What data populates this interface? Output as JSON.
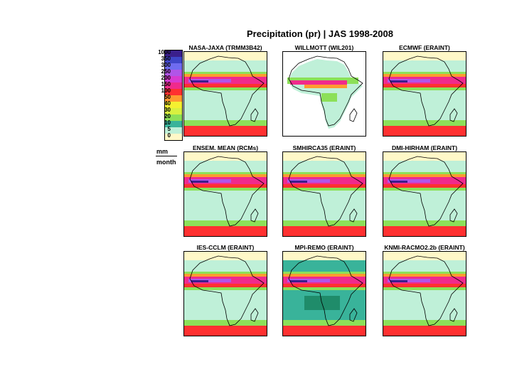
{
  "title": "Precipitation (pr) | JAS  1998-2008",
  "colorbar": {
    "labels": [
      "1000",
      "350",
      "300",
      "250",
      "200",
      "150",
      "100",
      "50",
      "40",
      "30",
      "20",
      "10",
      "5",
      "0"
    ],
    "colors": [
      "#3a1f8c",
      "#3f46c8",
      "#6f6cf0",
      "#b155e8",
      "#d83ad0",
      "#f02a8c",
      "#ff3030",
      "#ff9a30",
      "#f5f030",
      "#d8f040",
      "#8ce058",
      "#39b39a",
      "#bff0d8",
      "#fff8c8"
    ]
  },
  "unit": {
    "numerator": "mm",
    "denominator": "month"
  },
  "panels": [
    {
      "label": "NASA-JAXA (TRMM3B42)",
      "style": "model"
    },
    {
      "label": "WILLMOTT (WIL201)",
      "style": "land"
    },
    {
      "label": "ECMWF (ERAINT)",
      "style": "model"
    },
    {
      "label": "ENSEM. MEAN (RCMs)",
      "style": "model"
    },
    {
      "label": "SMHIRCA35 (ERAINT)",
      "style": "model"
    },
    {
      "label": "DMI-HIRHAM (ERAINT)",
      "style": "model"
    },
    {
      "label": "IES-CCLM (ERAINT)",
      "style": "model"
    },
    {
      "label": "MPI-REMO (ERAINT)",
      "style": "dark"
    },
    {
      "label": "KNMI-RACMO2.2b (ERAINT)",
      "style": "model"
    }
  ]
}
